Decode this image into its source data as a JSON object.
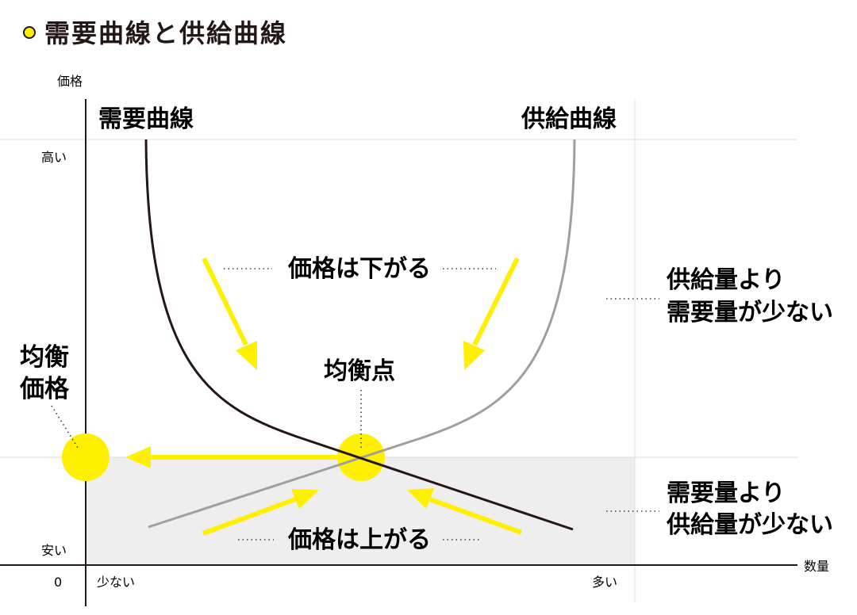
{
  "title": "需要曲線と供給曲線",
  "axes": {
    "y_label": "価格",
    "x_label": "数量",
    "origin": "0",
    "y_high": "高い",
    "y_low": "安い",
    "x_low": "少ない",
    "x_high": "多い"
  },
  "curves": {
    "demand_label": "需要曲線",
    "supply_label": "供給曲線"
  },
  "annotations": {
    "price_falls": "価格は下がる",
    "price_rises": "価格は上がる",
    "equilibrium_point": "均衡点",
    "equilibrium_price_line1": "均衡",
    "equilibrium_price_line2": "価格",
    "surplus_line1": "供給量より",
    "surplus_line2": "需要量が少ない",
    "shortage_line1": "需要量より",
    "shortage_line2": "供給量が少ない"
  },
  "colors": {
    "accent_yellow": "#fff000",
    "demand_curve": "#231815",
    "supply_curve": "#9f9f9f",
    "shortage_region": "#eeeeee",
    "grid": "#dcdcdc"
  }
}
